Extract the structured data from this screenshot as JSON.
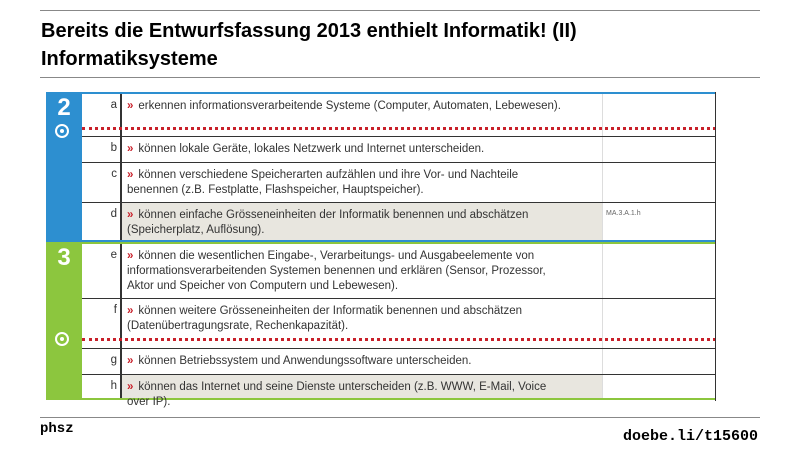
{
  "title": {
    "line1": "Bereits die Entwurfsfassung 2013 enthielt Informatik! (II)",
    "line2": "Informatiksysteme"
  },
  "footer": {
    "left": "phsz",
    "right": "doebe.li/t15600"
  },
  "colors": {
    "section2": "#2d8fd0",
    "section3": "#8cc63e",
    "marker": "#c8202a"
  },
  "marker_symbol": "»",
  "sections": [
    {
      "number": "2",
      "rows": [
        {
          "letter": "a",
          "text": "erkennen informationsverarbeitende Systeme (Computer, Automaten, Lebewesen).",
          "ref": ""
        },
        {
          "letter": "b",
          "text": "können lokale Geräte, lokales Netzwerk und Internet unterscheiden.",
          "ref": ""
        },
        {
          "letter": "c",
          "text": "können verschiedene Speicherarten aufzählen und ihre Vor- und Nachteile benennen (z.B. Festplatte, Flashspeicher, Hauptspeicher).",
          "ref": ""
        },
        {
          "letter": "d",
          "text": "können einfache Grösseneinheiten der Informatik benennen und abschätzen (Speicherplatz, Auflösung).",
          "ref": "MA.3.A.1.h"
        }
      ]
    },
    {
      "number": "3",
      "rows": [
        {
          "letter": "e",
          "text": "können die wesentlichen Eingabe-, Verarbeitungs- und Ausgabeelemente von informationsverarbeitenden Systemen benennen und erklären (Sensor, Prozessor, Aktor und Speicher von Computern und Lebewesen).",
          "ref": ""
        },
        {
          "letter": "f",
          "text": "können weitere Grösseneinheiten der Informatik benennen und abschätzen (Datenübertragungsrate, Rechenkapazität).",
          "ref": ""
        },
        {
          "letter": "g",
          "text": "können Betriebssystem und Anwendungssoftware unterscheiden.",
          "ref": ""
        },
        {
          "letter": "h",
          "text": "können das Internet und seine Dienste unterscheiden (z.B. WWW, E-Mail, Voice over IP).",
          "ref": ""
        }
      ]
    }
  ]
}
